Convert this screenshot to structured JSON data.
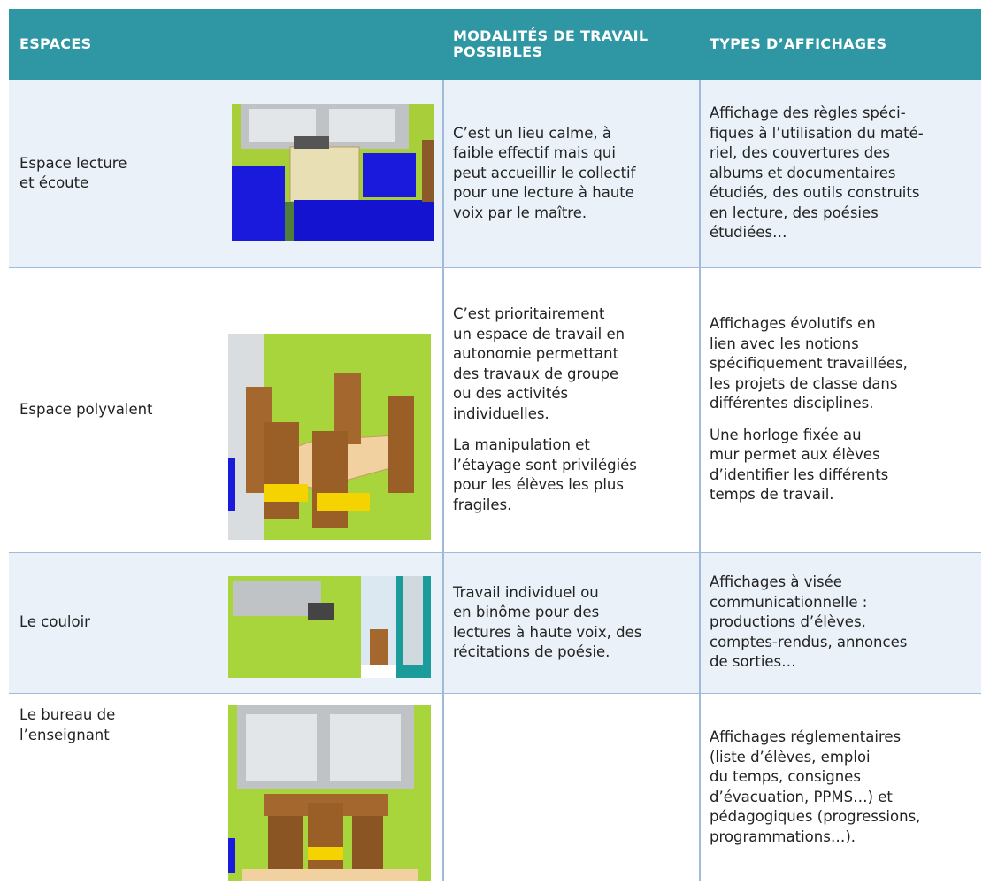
{
  "header": {
    "columns": [
      [
        "ESPACES"
      ],
      [
        "MODALITÉS DE TRAVAIL",
        "POSSIBLES"
      ],
      [
        "TYPES D’AFFICHAGES"
      ]
    ]
  },
  "table": {
    "rows": [
      {
        "space": [
          "Espace lecture",
          "et écoute"
        ],
        "work": [
          [
            "C’est un lieu calme, à",
            "faible effectif mais qui",
            "peut accueillir le collectif",
            "pour une lecture à haute",
            "voix par le maître."
          ]
        ],
        "display": [
          [
            "Affichage des règles spéci-",
            "fiques à l’utilisation du maté-",
            "riel, des couvertures des",
            "albums et documentaires",
            "étudiés, des outils construits",
            "en lecture, des poésies",
            "étudiées…"
          ]
        ]
      },
      {
        "space": [
          "Espace polyvalent"
        ],
        "work": [
          [
            "C’est prioritairement",
            "un espace de travail en",
            "autonomie permettant",
            "des travaux de groupe",
            "ou des activités",
            "individuelles."
          ],
          [
            "La manipulation et",
            "l’étayage sont privilégiés",
            "pour les élèves les plus",
            "fragiles."
          ]
        ],
        "display": [
          [
            "Affichages évolutifs en",
            "lien avec les notions",
            "spécifiquement travaillées,",
            "les projets de classe dans",
            "différentes disciplines."
          ],
          [
            "Une horloge fixée au",
            "mur permet aux élèves",
            "d’identifier les différents",
            "temps de travail."
          ]
        ]
      },
      {
        "space": [
          "Le couloir"
        ],
        "work": [
          [
            "Travail individuel ou",
            "en binôme pour des",
            "lectures à haute voix, des",
            "récitations de poésie."
          ]
        ],
        "display": [
          [
            "Affichages à visée",
            "communicationnelle :",
            "productions d’élèves,",
            "comptes-rendus, annonces",
            "de sorties…"
          ]
        ]
      },
      {
        "space": [
          "Le bureau de",
          "l’enseignant"
        ],
        "work": [],
        "display": [
          [
            "Affichages réglementaires",
            "(liste d’élèves, emploi",
            "du temps, consignes",
            "d’évacuation, PPMS…) et",
            "pédagogiques (progressions,",
            "programmations…)."
          ]
        ]
      }
    ]
  }
}
